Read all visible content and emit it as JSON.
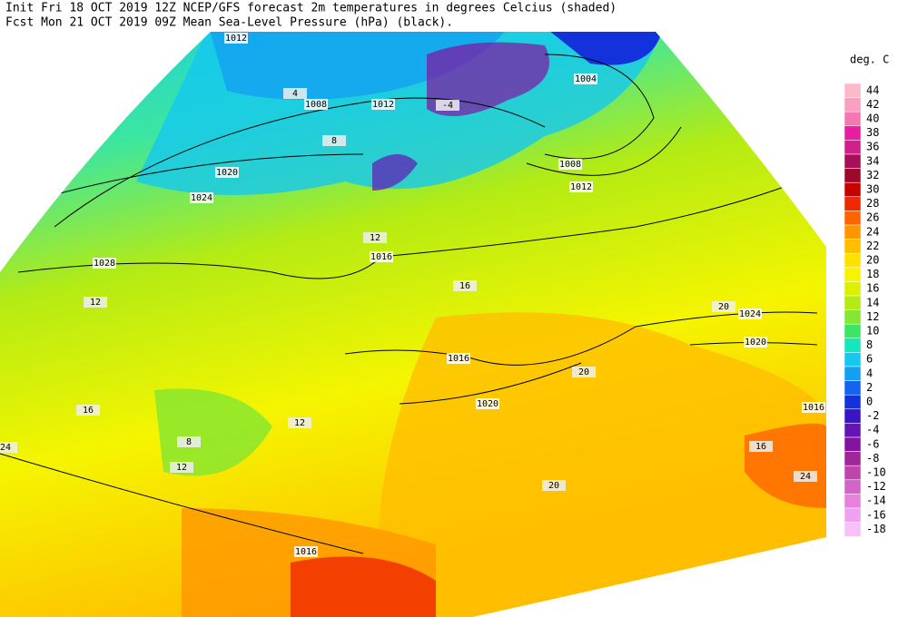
{
  "header": {
    "line1": "Init  Fri 18 OCT 2019 12Z   NCEP/GFS forecast 2m temperatures in degrees Celcius (shaded)",
    "line2": "Fcst Mon 21 OCT 2019 09Z  Mean Sea-Level Pressure (hPa) (black)."
  },
  "colorbar": {
    "title": "deg. C",
    "levels": [
      {
        "label": 44,
        "color": "#fcb9c8"
      },
      {
        "label": 42,
        "color": "#f9a0c0"
      },
      {
        "label": 40,
        "color": "#f478b0"
      },
      {
        "label": 38,
        "color": "#e81ea0"
      },
      {
        "label": 36,
        "color": "#d0208c"
      },
      {
        "label": 34,
        "color": "#a80f5a"
      },
      {
        "label": 32,
        "color": "#9b0a2a"
      },
      {
        "label": 30,
        "color": "#c80000"
      },
      {
        "label": 28,
        "color": "#f02800"
      },
      {
        "label": 26,
        "color": "#ff6400"
      },
      {
        "label": 24,
        "color": "#ff9600"
      },
      {
        "label": 22,
        "color": "#ffbe00"
      },
      {
        "label": 20,
        "color": "#ffe100"
      },
      {
        "label": 18,
        "color": "#f5f500"
      },
      {
        "label": 16,
        "color": "#dcf000"
      },
      {
        "label": 14,
        "color": "#b4eb14"
      },
      {
        "label": 12,
        "color": "#82e632"
      },
      {
        "label": 10,
        "color": "#3ce664"
      },
      {
        "label": 8,
        "color": "#14e6be"
      },
      {
        "label": 6,
        "color": "#14c8f0"
      },
      {
        "label": 4,
        "color": "#14a0f0"
      },
      {
        "label": 2,
        "color": "#1464f0"
      },
      {
        "label": 0,
        "color": "#1432dc"
      },
      {
        "label": -2,
        "color": "#3c14c8"
      },
      {
        "label": -4,
        "color": "#6414b4"
      },
      {
        "label": -6,
        "color": "#8214a0"
      },
      {
        "label": -8,
        "color": "#a02896"
      },
      {
        "label": -10,
        "color": "#be46aa"
      },
      {
        "label": -12,
        "color": "#d264c8"
      },
      {
        "label": -14,
        "color": "#e682dc"
      },
      {
        "label": -16,
        "color": "#f0a0f0"
      },
      {
        "label": -18,
        "color": "#f8c0f8"
      }
    ]
  },
  "map": {
    "isobar_labels": [
      1012,
      1008,
      1012,
      1020,
      1024,
      1028,
      1004,
      1008,
      1012,
      1016,
      1016,
      1020,
      1024,
      1020,
      1016,
      1016
    ],
    "temperature_labels": [
      -4,
      4,
      8,
      12,
      16,
      20,
      24,
      12,
      16,
      24,
      8,
      12,
      20,
      12,
      16,
      20
    ]
  }
}
